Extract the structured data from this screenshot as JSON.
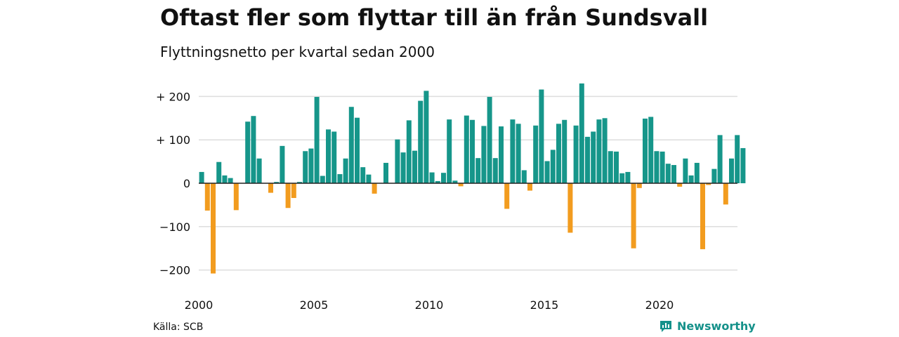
{
  "title": "Oftast fler som flyttar till än från Sundsvall",
  "subtitle": "Flyttningsnetto per kvartal sedan 2000",
  "source": "Källa: SCB",
  "brand": "Newsworthy",
  "colors": {
    "positive": "#16968a",
    "negative": "#f29c1f",
    "grid": "#dddddd",
    "zero": "#222222",
    "brand": "#15918a"
  },
  "chart_data": {
    "type": "bar",
    "xlabel": "",
    "ylabel": "",
    "ylim": [
      -220,
      240
    ],
    "yticks": [
      200,
      100,
      0,
      -100,
      -200
    ],
    "ytick_labels": [
      "+ 200",
      "+ 100",
      "0",
      "−100",
      "−200"
    ],
    "xticks": [
      2000,
      2005,
      2010,
      2015,
      2020
    ],
    "xtick_labels": [
      "2000",
      "2005",
      "2010",
      "2015",
      "2020"
    ],
    "x_start": 2000,
    "periods_per_year": 4,
    "grid": true,
    "values": [
      26,
      -63,
      -208,
      49,
      18,
      12,
      -62,
      0,
      142,
      155,
      57,
      0,
      -22,
      3,
      86,
      -57,
      -34,
      3,
      74,
      80,
      199,
      17,
      124,
      119,
      21,
      57,
      176,
      151,
      37,
      20,
      -24,
      0,
      47,
      0,
      101,
      71,
      145,
      75,
      190,
      213,
      25,
      5,
      24,
      147,
      6,
      -7,
      156,
      146,
      58,
      132,
      199,
      58,
      131,
      -59,
      147,
      137,
      30,
      -17,
      133,
      216,
      51,
      77,
      137,
      146,
      -114,
      133,
      230,
      107,
      119,
      147,
      150,
      74,
      73,
      23,
      26,
      -150,
      -11,
      149,
      153,
      74,
      73,
      45,
      42,
      -8,
      57,
      18,
      47,
      -152,
      -4,
      33,
      111,
      -49,
      57,
      111,
      81
    ]
  }
}
